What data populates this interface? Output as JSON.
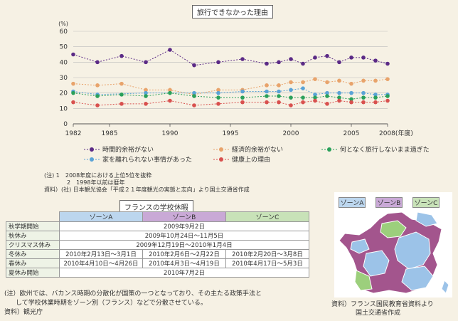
{
  "chart": {
    "title": "旅行できなかった理由",
    "y_unit": "(%)",
    "x_unit": "(年度)",
    "colors": [
      "#5b2a86",
      "#e8a36b",
      "#5aa3d6",
      "#2aa05a",
      "#d8504e"
    ],
    "legend": [
      "時間的余裕がない",
      "経済的余裕がない",
      "何となく旅行しないまま過ぎた",
      "家を離れられない事情があった",
      "健康上の理由"
    ],
    "notes": [
      "(注) 1　2008年度における上位5位を抜粋",
      "2　1998年以前は暦年",
      "資料）(社) 日本観光協会「平成２１年度観光の実態と志向」より国土交通省作成"
    ]
  },
  "chart_data": {
    "type": "line",
    "title": "旅行できなかった理由",
    "xlabel": "(年度)",
    "ylabel": "(%)",
    "ylim": [
      0,
      60
    ],
    "xlim": [
      1982,
      2008
    ],
    "x_ticks": [
      1982,
      1985,
      1990,
      1995,
      2000,
      2005,
      2008
    ],
    "y_ticks": [
      0,
      10,
      20,
      30,
      40,
      50,
      60
    ],
    "x_tick_labels": [
      "1982",
      "1985",
      "1990",
      "1995",
      "2000",
      "2005",
      "2008(年度)"
    ],
    "grid": "horizontal",
    "legend_position": "bottom",
    "series": [
      {
        "name": "時間的余裕がない",
        "x": [
          1982,
          1984,
          1986,
          1988,
          1990,
          1992,
          1994,
          1996,
          1998,
          1999,
          2000,
          2001,
          2002,
          2003,
          2004,
          2005,
          2006,
          2007,
          2008
        ],
        "values": [
          45,
          40,
          44,
          40,
          48,
          38,
          40,
          42,
          39,
          40,
          42,
          39,
          43,
          44,
          40,
          43,
          43,
          41,
          39
        ]
      },
      {
        "name": "経済的余裕がない",
        "x": [
          1982,
          1984,
          1986,
          1988,
          1990,
          1992,
          1994,
          1996,
          1998,
          1999,
          2000,
          2001,
          2002,
          2003,
          2004,
          2005,
          2006,
          2007,
          2008
        ],
        "values": [
          26,
          25,
          26,
          22,
          22,
          19,
          22,
          22,
          25,
          25,
          27,
          27,
          29,
          27,
          28,
          26,
          28,
          28,
          29
        ]
      },
      {
        "name": "何となく旅行しないまま過ぎた",
        "x": [
          1982,
          1984,
          1988,
          1992,
          1994,
          1996,
          1998,
          1999,
          2000,
          2001,
          2002,
          2003,
          2004,
          2005,
          2006,
          2007,
          2008
        ],
        "values": [
          21,
          19,
          20,
          20,
          20,
          21,
          21,
          21,
          22,
          23,
          19,
          20,
          20,
          20,
          20,
          19,
          19
        ]
      },
      {
        "name": "家を離れられない事情があった",
        "x": [
          1982,
          1984,
          1986,
          1988,
          1990,
          1992,
          1994,
          1996,
          1998,
          1999,
          2000,
          2001,
          2002,
          2003,
          2004,
          2005,
          2006,
          2007,
          2008
        ],
        "values": [
          20,
          18,
          19,
          18,
          20,
          18,
          17,
          17,
          18,
          18,
          17,
          17,
          17,
          18,
          17,
          16,
          17,
          17,
          18
        ]
      },
      {
        "name": "健康上の理由",
        "x": [
          1982,
          1984,
          1986,
          1988,
          1990,
          1992,
          1994,
          1996,
          1998,
          1999,
          2000,
          2001,
          2002,
          2003,
          2004,
          2005,
          2006,
          2007,
          2008
        ],
        "values": [
          14,
          12,
          13,
          13,
          15,
          12,
          13,
          14,
          14,
          14,
          12,
          14,
          15,
          13,
          15,
          14,
          14,
          14,
          15
        ]
      }
    ]
  },
  "table": {
    "title": "フランスの学校休暇",
    "zones": [
      "ゾーンA",
      "ゾーンB",
      "ゾーンC"
    ],
    "zone_colors": [
      "#bcd6ee",
      "#c9a9d6",
      "#c8e2b8"
    ],
    "rows": [
      {
        "label": "秋学期開始",
        "common": "2009年9月2日"
      },
      {
        "label": "秋休み",
        "common": "2009年10月24日～11月5日"
      },
      {
        "label": "クリスマス休み",
        "common": "2009年12月19日～2010年1月4日"
      },
      {
        "label": "冬休み",
        "a": "2010年2月13日～3月1日",
        "b": "2010年2月6日～2月22日",
        "c": "2010年2月20日～3月8日"
      },
      {
        "label": "春休み",
        "a": "2010年4月10日～4月26日",
        "b": "2010年4月3日～4月19日",
        "c": "2010年4月17日～5月3日"
      },
      {
        "label": "夏休み開始",
        "common": "2010年7月2日"
      }
    ],
    "notes": [
      "(注）欧州では、バカンス時期の分散化が国策の一つとなっており、その主たる政策手法と",
      "して学校休業時期をゾーン別（フランス）などで分散させている。",
      "資料）観光庁"
    ]
  },
  "map": {
    "legend": [
      "ゾーンA",
      "ゾーンB",
      "ゾーンC"
    ],
    "colors": [
      "#9cc3e8",
      "#a3558d",
      "#9ccf7c"
    ],
    "source": [
      "資料）フランス国民教育省資料より",
      "国土交通省作成"
    ]
  }
}
